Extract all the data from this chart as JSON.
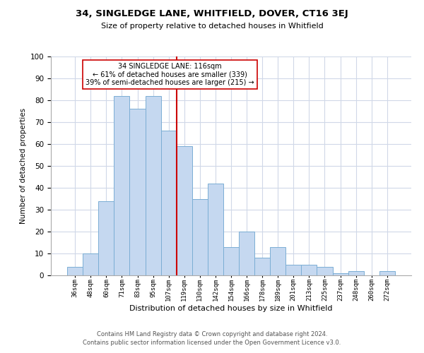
{
  "title": "34, SINGLEDGE LANE, WHITFIELD, DOVER, CT16 3EJ",
  "subtitle": "Size of property relative to detached houses in Whitfield",
  "xlabel": "Distribution of detached houses by size in Whitfield",
  "ylabel": "Number of detached properties",
  "bar_labels": [
    "36sqm",
    "48sqm",
    "60sqm",
    "71sqm",
    "83sqm",
    "95sqm",
    "107sqm",
    "119sqm",
    "130sqm",
    "142sqm",
    "154sqm",
    "166sqm",
    "178sqm",
    "189sqm",
    "201sqm",
    "213sqm",
    "225sqm",
    "237sqm",
    "248sqm",
    "260sqm",
    "272sqm"
  ],
  "bar_values": [
    4,
    10,
    34,
    82,
    76,
    82,
    66,
    59,
    35,
    42,
    13,
    20,
    8,
    13,
    5,
    5,
    4,
    1,
    2,
    0,
    2
  ],
  "bar_color": "#c5d8f0",
  "bar_edge_color": "#7baed4",
  "vline_color": "#cc0000",
  "annotation_title": "34 SINGLEDGE LANE: 116sqm",
  "annotation_line1": "← 61% of detached houses are smaller (339)",
  "annotation_line2": "39% of semi-detached houses are larger (215) →",
  "annotation_box_color": "#ffffff",
  "annotation_box_edge": "#cc0000",
  "ylim": [
    0,
    100
  ],
  "yticks": [
    0,
    10,
    20,
    30,
    40,
    50,
    60,
    70,
    80,
    90,
    100
  ],
  "footer1": "Contains HM Land Registry data © Crown copyright and database right 2024.",
  "footer2": "Contains public sector information licensed under the Open Government Licence v3.0.",
  "bg_color": "#ffffff",
  "grid_color": "#d0d8e8"
}
